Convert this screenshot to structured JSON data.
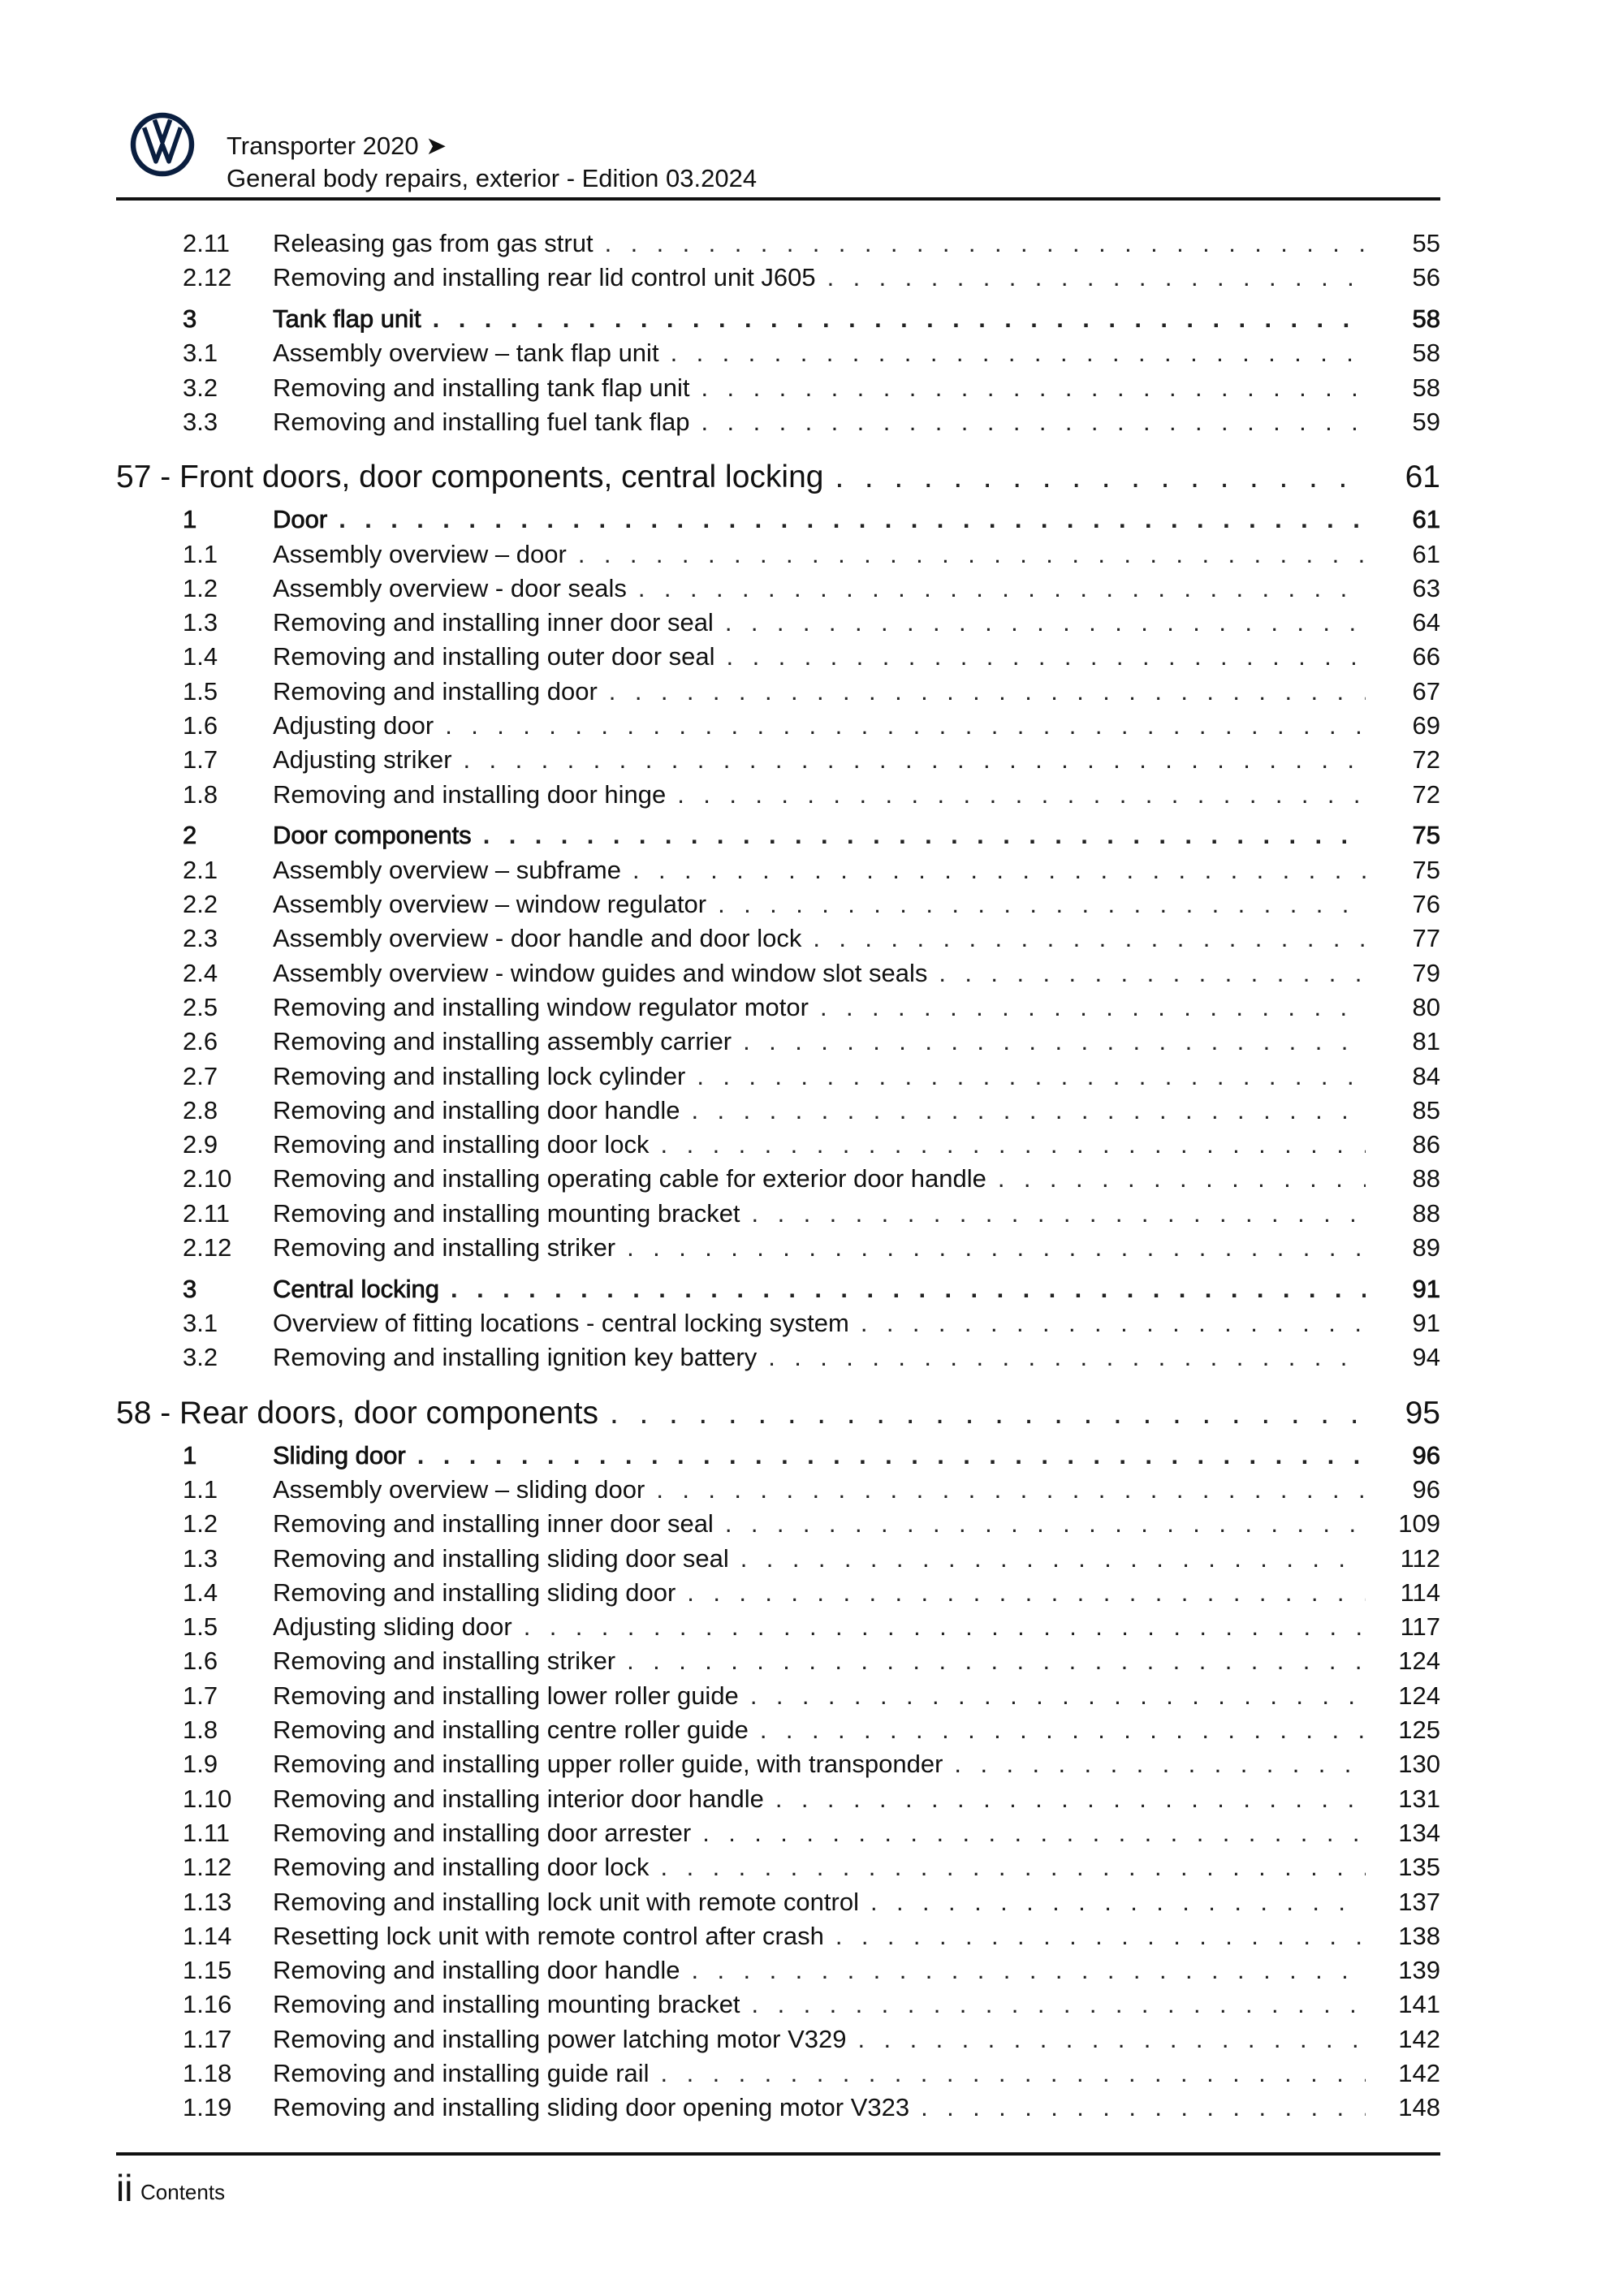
{
  "header": {
    "logo": "VW",
    "title": "Transporter 2020 ➤",
    "subtitle": "General body repairs, exterior - Edition 03.2024"
  },
  "toc": [
    {
      "type": "item",
      "num": "2.11",
      "title": "Releasing gas from gas strut",
      "page": "55"
    },
    {
      "type": "item",
      "num": "2.12",
      "title": "Removing and installing rear lid control unit J605",
      "page": "56"
    },
    {
      "type": "sec",
      "num": "3",
      "title": "Tank flap unit",
      "page": "58"
    },
    {
      "type": "item",
      "num": "3.1",
      "title": "Assembly overview – tank flap unit",
      "page": "58"
    },
    {
      "type": "item",
      "num": "3.2",
      "title": "Removing and installing tank flap unit",
      "page": "58"
    },
    {
      "type": "item",
      "num": "3.3",
      "title": "Removing and installing fuel tank flap",
      "page": "59"
    },
    {
      "type": "ch",
      "num": "",
      "title": "57 - Front doors, door components, central locking",
      "page": "61"
    },
    {
      "type": "sec",
      "num": "1",
      "title": "Door",
      "page": "61"
    },
    {
      "type": "item",
      "num": "1.1",
      "title": "Assembly overview – door",
      "page": "61"
    },
    {
      "type": "item",
      "num": "1.2",
      "title": "Assembly overview - door seals",
      "page": "63"
    },
    {
      "type": "item",
      "num": "1.3",
      "title": "Removing and installing inner door seal",
      "page": "64"
    },
    {
      "type": "item",
      "num": "1.4",
      "title": "Removing and installing outer door seal",
      "page": "66"
    },
    {
      "type": "item",
      "num": "1.5",
      "title": "Removing and installing door",
      "page": "67"
    },
    {
      "type": "item",
      "num": "1.6",
      "title": "Adjusting door",
      "page": "69"
    },
    {
      "type": "item",
      "num": "1.7",
      "title": "Adjusting striker",
      "page": "72"
    },
    {
      "type": "item",
      "num": "1.8",
      "title": "Removing and installing door hinge",
      "page": "72"
    },
    {
      "type": "sec",
      "num": "2",
      "title": "Door components",
      "page": "75"
    },
    {
      "type": "item",
      "num": "2.1",
      "title": "Assembly overview – subframe",
      "page": "75"
    },
    {
      "type": "item",
      "num": "2.2",
      "title": "Assembly overview – window regulator",
      "page": "76"
    },
    {
      "type": "item",
      "num": "2.3",
      "title": "Assembly overview - door handle and door lock",
      "page": "77"
    },
    {
      "type": "item",
      "num": "2.4",
      "title": "Assembly overview - window guides and window slot seals",
      "page": "79"
    },
    {
      "type": "item",
      "num": "2.5",
      "title": "Removing and installing window regulator motor",
      "page": "80"
    },
    {
      "type": "item",
      "num": "2.6",
      "title": "Removing and installing assembly carrier",
      "page": "81"
    },
    {
      "type": "item",
      "num": "2.7",
      "title": "Removing and installing lock cylinder",
      "page": "84"
    },
    {
      "type": "item",
      "num": "2.8",
      "title": "Removing and installing door handle",
      "page": "85"
    },
    {
      "type": "item",
      "num": "2.9",
      "title": "Removing and installing door lock",
      "page": "86"
    },
    {
      "type": "item",
      "num": "2.10",
      "title": "Removing and installing operating cable for exterior door handle",
      "page": "88"
    },
    {
      "type": "item",
      "num": "2.11",
      "title": "Removing and installing mounting bracket",
      "page": "88"
    },
    {
      "type": "item",
      "num": "2.12",
      "title": "Removing and installing striker",
      "page": "89"
    },
    {
      "type": "sec",
      "num": "3",
      "title": "Central locking",
      "page": "91"
    },
    {
      "type": "item",
      "num": "3.1",
      "title": "Overview of fitting locations - central locking system",
      "page": "91"
    },
    {
      "type": "item",
      "num": "3.2",
      "title": "Removing and installing ignition key battery",
      "page": "94"
    },
    {
      "type": "ch",
      "num": "",
      "title": "58 - Rear doors, door components",
      "page": "95"
    },
    {
      "type": "sec",
      "num": "1",
      "title": "Sliding door",
      "page": "96"
    },
    {
      "type": "item",
      "num": "1.1",
      "title": "Assembly overview – sliding door",
      "page": "96"
    },
    {
      "type": "item",
      "num": "1.2",
      "title": "Removing and installing inner door seal",
      "page": "109"
    },
    {
      "type": "item",
      "num": "1.3",
      "title": "Removing and installing sliding door seal",
      "page": "112"
    },
    {
      "type": "item",
      "num": "1.4",
      "title": "Removing and installing sliding door",
      "page": "114"
    },
    {
      "type": "item",
      "num": "1.5",
      "title": "Adjusting sliding door",
      "page": "117"
    },
    {
      "type": "item",
      "num": "1.6",
      "title": "Removing and installing striker",
      "page": "124"
    },
    {
      "type": "item",
      "num": "1.7",
      "title": "Removing and installing lower roller guide",
      "page": "124"
    },
    {
      "type": "item",
      "num": "1.8",
      "title": "Removing and installing centre roller guide",
      "page": "125"
    },
    {
      "type": "item",
      "num": "1.9",
      "title": "Removing and installing upper roller guide, with transponder",
      "page": "130"
    },
    {
      "type": "item",
      "num": "1.10",
      "title": "Removing and installing interior door handle",
      "page": "131"
    },
    {
      "type": "item",
      "num": "1.11",
      "title": "Removing and installing door arrester",
      "page": "134"
    },
    {
      "type": "item",
      "num": "1.12",
      "title": "Removing and installing door lock",
      "page": "135"
    },
    {
      "type": "item",
      "num": "1.13",
      "title": "Removing and installing lock unit with remote control",
      "page": "137"
    },
    {
      "type": "item",
      "num": "1.14",
      "title": "Resetting lock unit with remote control after crash",
      "page": "138"
    },
    {
      "type": "item",
      "num": "1.15",
      "title": "Removing and installing door handle",
      "page": "139"
    },
    {
      "type": "item",
      "num": "1.16",
      "title": "Removing and installing mounting bracket",
      "page": "141"
    },
    {
      "type": "item",
      "num": "1.17",
      "title": "Removing and installing power latching motor V329",
      "page": "142"
    },
    {
      "type": "item",
      "num": "1.18",
      "title": "Removing and installing guide rail",
      "page": "142"
    },
    {
      "type": "item",
      "num": "1.19",
      "title": "Removing and installing sliding door opening motor V323",
      "page": "148"
    }
  ],
  "footer": {
    "page_number": "ii",
    "section": "Contents"
  },
  "colors": {
    "logo": "#0a1e3f",
    "text": "#111111"
  }
}
